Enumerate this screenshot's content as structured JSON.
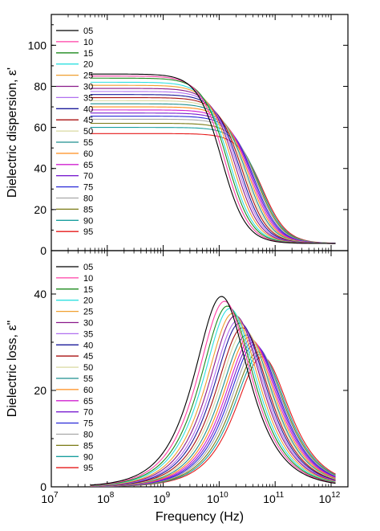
{
  "chart_data": [
    {
      "type": "line",
      "panel": "top",
      "ylabel": "Dielectric dispersion, ε'",
      "xlabel": "",
      "x_scale": "log",
      "xlim": [
        10000000.0,
        2000000000000.0
      ],
      "ylim": [
        0,
        115
      ],
      "yticks": [
        0,
        20,
        40,
        60,
        80,
        100
      ],
      "legend": "top-left",
      "description_model": "Debye relaxation: eps' = eps_inf + (eps_s - eps_inf) / (1 + (f/fc)^2)",
      "x_range": [
        50000000.0,
        1200000000000.0
      ],
      "series": [
        {
          "name": "05",
          "eps_static": 86,
          "eps_inf": 3.5,
          "f_relax": 11000000000.0,
          "color": "#000000"
        },
        {
          "name": "10",
          "eps_static": 85,
          "eps_inf": 3.5,
          "f_relax": 12500000000.0,
          "color": "#ff3fa5"
        },
        {
          "name": "15",
          "eps_static": 84,
          "eps_inf": 3.5,
          "f_relax": 14000000000.0,
          "color": "#1c8a1c"
        },
        {
          "name": "20",
          "eps_static": 82,
          "eps_inf": 3.5,
          "f_relax": 15500000000.0,
          "color": "#2fe0e0"
        },
        {
          "name": "25",
          "eps_static": 80.5,
          "eps_inf": 3.5,
          "f_relax": 17500000000.0,
          "color": "#f0a030"
        },
        {
          "name": "30",
          "eps_static": 79,
          "eps_inf": 3.5,
          "f_relax": 19500000000.0,
          "color": "#8a1a8a"
        },
        {
          "name": "35",
          "eps_static": 77.5,
          "eps_inf": 3.5,
          "f_relax": 21500000000.0,
          "color": "#b070f0"
        },
        {
          "name": "40",
          "eps_static": 76,
          "eps_inf": 3.5,
          "f_relax": 23500000000.0,
          "color": "#1a1a9a"
        },
        {
          "name": "45",
          "eps_static": 74.5,
          "eps_inf": 3.5,
          "f_relax": 26000000000.0,
          "color": "#aa1111"
        },
        {
          "name": "50",
          "eps_static": 73,
          "eps_inf": 3.5,
          "f_relax": 28500000000.0,
          "color": "#d8d8a0"
        },
        {
          "name": "55",
          "eps_static": 71.5,
          "eps_inf": 3.5,
          "f_relax": 31000000000.0,
          "color": "#1f8f8f"
        },
        {
          "name": "60",
          "eps_static": 70,
          "eps_inf": 3.5,
          "f_relax": 34000000000.0,
          "color": "#ff8c1a"
        },
        {
          "name": "65",
          "eps_static": 68.5,
          "eps_inf": 3.5,
          "f_relax": 37000000000.0,
          "color": "#d020d0"
        },
        {
          "name": "70",
          "eps_static": 67,
          "eps_inf": 3.5,
          "f_relax": 40000000000.0,
          "color": "#7a1fd0"
        },
        {
          "name": "75",
          "eps_static": 65.5,
          "eps_inf": 3.5,
          "f_relax": 43000000000.0,
          "color": "#2a2ad8"
        },
        {
          "name": "80",
          "eps_static": 64,
          "eps_inf": 3.5,
          "f_relax": 46500000000.0,
          "color": "#a8a8a8"
        },
        {
          "name": "85",
          "eps_static": 62,
          "eps_inf": 3.5,
          "f_relax": 50000000000.0,
          "color": "#7a7a14"
        },
        {
          "name": "90",
          "eps_static": 60,
          "eps_inf": 3.5,
          "f_relax": 54000000000.0,
          "color": "#1a9f9f"
        },
        {
          "name": "95",
          "eps_static": 57,
          "eps_inf": 3.5,
          "f_relax": 59000000000.0,
          "color": "#e61a1a"
        }
      ]
    },
    {
      "type": "line",
      "panel": "bottom",
      "ylabel": "Dielectric loss, ε\"",
      "xlabel": "Frequency (Hz)",
      "x_scale": "log",
      "xlim": [
        10000000.0,
        2000000000000.0
      ],
      "ylim": [
        0,
        49
      ],
      "yticks": [
        0,
        20,
        40
      ],
      "xticks": [
        "10^7",
        "10^8",
        "10^9",
        "10^10",
        "10^11",
        "10^12"
      ],
      "legend": "top-left",
      "description_model": "Debye relaxation: eps'' = (eps_s - eps_inf) * (f/fc) / (1 + (f/fc)^2); peak heights below",
      "x_range": [
        50000000.0,
        1200000000000.0
      ],
      "series": [
        {
          "name": "05",
          "peak_value": 39.5,
          "f_peak": 11000000000.0,
          "color": "#000000"
        },
        {
          "name": "10",
          "peak_value": 38.5,
          "f_peak": 12500000000.0,
          "color": "#ff3fa5"
        },
        {
          "name": "15",
          "peak_value": 37.5,
          "f_peak": 14000000000.0,
          "color": "#1c8a1c"
        },
        {
          "name": "20",
          "peak_value": 37,
          "f_peak": 15500000000.0,
          "color": "#2fe0e0"
        },
        {
          "name": "25",
          "peak_value": 36,
          "f_peak": 17500000000.0,
          "color": "#f0a030"
        },
        {
          "name": "30",
          "peak_value": 35.5,
          "f_peak": 19500000000.0,
          "color": "#8a1a8a"
        },
        {
          "name": "35",
          "peak_value": 34.5,
          "f_peak": 21500000000.0,
          "color": "#b070f0"
        },
        {
          "name": "40",
          "peak_value": 34,
          "f_peak": 23500000000.0,
          "color": "#1a1a9a"
        },
        {
          "name": "45",
          "peak_value": 33,
          "f_peak": 26000000000.0,
          "color": "#aa1111"
        },
        {
          "name": "50",
          "peak_value": 32.5,
          "f_peak": 28500000000.0,
          "color": "#d8d8a0"
        },
        {
          "name": "55",
          "peak_value": 31.5,
          "f_peak": 31000000000.0,
          "color": "#1f8f8f"
        },
        {
          "name": "60",
          "peak_value": 31,
          "f_peak": 34000000000.0,
          "color": "#ff8c1a"
        },
        {
          "name": "65",
          "peak_value": 30.5,
          "f_peak": 37000000000.0,
          "color": "#d020d0"
        },
        {
          "name": "70",
          "peak_value": 30,
          "f_peak": 40000000000.0,
          "color": "#7a1fd0"
        },
        {
          "name": "75",
          "peak_value": 29.5,
          "f_peak": 43000000000.0,
          "color": "#2a2ad8"
        },
        {
          "name": "80",
          "peak_value": 29,
          "f_peak": 46500000000.0,
          "color": "#a8a8a8"
        },
        {
          "name": "85",
          "peak_value": 28,
          "f_peak": 50000000000.0,
          "color": "#7a7a14"
        },
        {
          "name": "90",
          "peak_value": 27.5,
          "f_peak": 54000000000.0,
          "color": "#1a9f9f"
        },
        {
          "name": "95",
          "peak_value": 27,
          "f_peak": 59000000000.0,
          "color": "#e61a1a"
        }
      ]
    }
  ]
}
